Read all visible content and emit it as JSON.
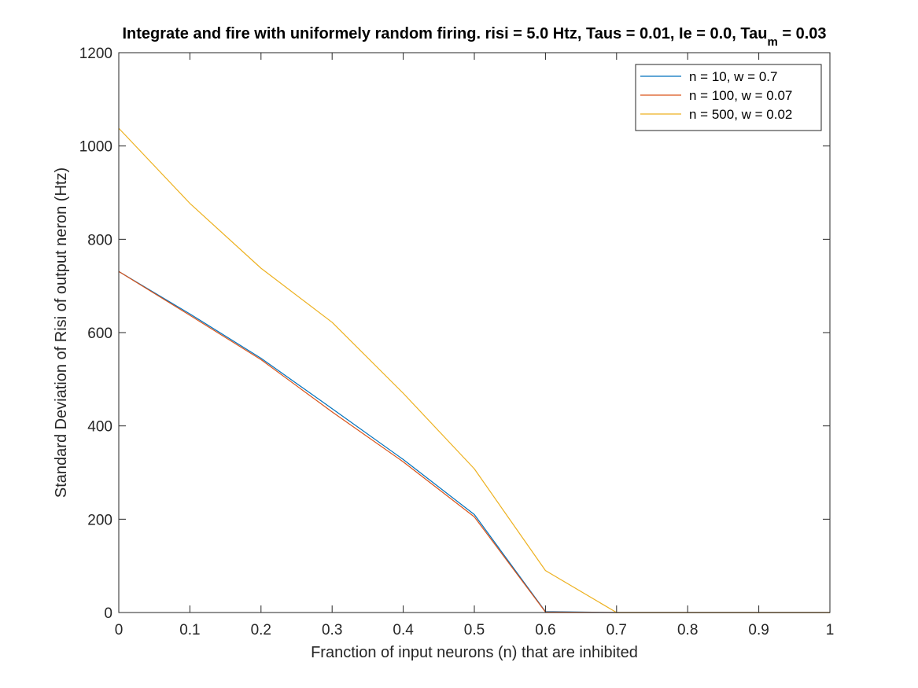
{
  "chart_data": {
    "type": "line",
    "title": "Integrate and fire with uniformely random firing. risi = 5.0 Htz, Taus = 0.01, Ie = 0.0, Tau",
    "title_subscript": "m",
    "title_suffix": " = 0.03",
    "xlabel": "Franction of input neurons (n) that are inhibited",
    "ylabel": "Standard Deviation of Risi of output neron (Htz)",
    "xlim": [
      0,
      1
    ],
    "ylim": [
      0,
      1200
    ],
    "xticks": [
      "0",
      "0.1",
      "0.2",
      "0.3",
      "0.4",
      "0.5",
      "0.6",
      "0.7",
      "0.8",
      "0.9",
      "1"
    ],
    "yticks": [
      "0",
      "200",
      "400",
      "600",
      "800",
      "1000",
      "1200"
    ],
    "grid": false,
    "legend_position": "top-right",
    "x": [
      0,
      0.1,
      0.2,
      0.3,
      0.4,
      0.5,
      0.6,
      0.7,
      0.8,
      0.9,
      1.0
    ],
    "series": [
      {
        "name": "n = 10, w = 0.7",
        "color": "#0072BD",
        "values": [
          731,
          640,
          545,
          437,
          328,
          210,
          2,
          0,
          0,
          0,
          0
        ]
      },
      {
        "name": "n = 100, w = 0.07",
        "color": "#D95319",
        "values": [
          731,
          637,
          542,
          430,
          323,
          205,
          1,
          0,
          0,
          0,
          0
        ]
      },
      {
        "name": "n = 500, w = 0.02",
        "color": "#EDB120",
        "values": [
          1038,
          877,
          738,
          622,
          470,
          308,
          90,
          0,
          0,
          0,
          0
        ]
      }
    ]
  }
}
